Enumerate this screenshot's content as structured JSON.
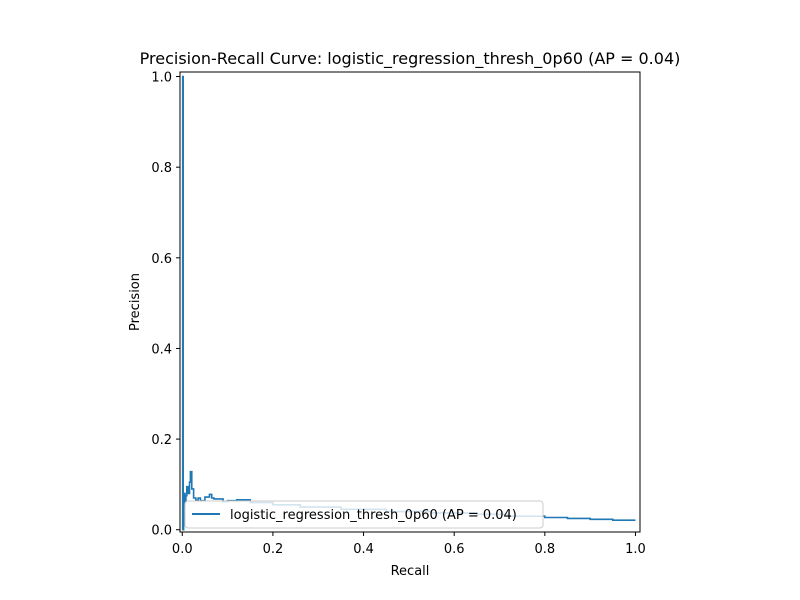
{
  "chart_data": {
    "type": "line",
    "title": "Precision-Recall Curve: logistic_regression_thresh_0p60 (AP = 0.04)",
    "xlabel": "Recall",
    "ylabel": "Precision",
    "xlim": [
      -0.005,
      1.01
    ],
    "ylim": [
      -0.005,
      1.01
    ],
    "xticks": [
      0.0,
      0.2,
      0.4,
      0.6,
      0.8,
      1.0
    ],
    "xtick_labels": [
      "0.0",
      "0.2",
      "0.4",
      "0.6",
      "0.8",
      "1.0"
    ],
    "yticks": [
      0.0,
      0.2,
      0.4,
      0.6,
      0.8,
      1.0
    ],
    "ytick_labels": [
      "0.0",
      "0.2",
      "0.4",
      "0.6",
      "0.8",
      "1.0"
    ],
    "grid": false,
    "legend_position": "lower-right",
    "series": [
      {
        "name": "logistic_regression_thresh_0p60 (AP = 0.04)",
        "color": "#1f77b4",
        "step": true,
        "x": [
          0.0,
          0.001,
          0.001,
          0.002,
          0.002,
          0.003,
          0.003,
          0.004,
          0.004,
          0.006,
          0.006,
          0.008,
          0.008,
          0.01,
          0.01,
          0.013,
          0.013,
          0.016,
          0.016,
          0.018,
          0.018,
          0.021,
          0.021,
          0.025,
          0.025,
          0.03,
          0.03,
          0.035,
          0.035,
          0.04,
          0.04,
          0.05,
          0.05,
          0.06,
          0.06,
          0.065,
          0.065,
          0.07,
          0.07,
          0.09,
          0.09,
          0.1,
          0.1,
          0.12,
          0.12,
          0.15,
          0.15,
          0.2,
          0.2,
          0.26,
          0.26,
          0.35,
          0.35,
          0.45,
          0.45,
          0.55,
          0.55,
          0.65,
          0.65,
          0.72,
          0.72,
          0.8,
          0.8,
          0.85,
          0.85,
          0.9,
          0.9,
          0.95,
          0.95,
          1.0
        ],
        "y": [
          0.0,
          0.0,
          1.0,
          1.0,
          0.0,
          0.0,
          0.05,
          0.05,
          0.08,
          0.08,
          0.06,
          0.06,
          0.075,
          0.075,
          0.095,
          0.095,
          0.08,
          0.08,
          0.105,
          0.105,
          0.128,
          0.128,
          0.09,
          0.09,
          0.07,
          0.07,
          0.065,
          0.065,
          0.07,
          0.07,
          0.064,
          0.064,
          0.072,
          0.072,
          0.078,
          0.078,
          0.07,
          0.07,
          0.068,
          0.068,
          0.062,
          0.062,
          0.064,
          0.064,
          0.066,
          0.066,
          0.06,
          0.06,
          0.055,
          0.055,
          0.05,
          0.05,
          0.045,
          0.045,
          0.04,
          0.04,
          0.037,
          0.037,
          0.034,
          0.034,
          0.03,
          0.03,
          0.027,
          0.027,
          0.025,
          0.025,
          0.023,
          0.023,
          0.021,
          0.021
        ]
      }
    ]
  }
}
